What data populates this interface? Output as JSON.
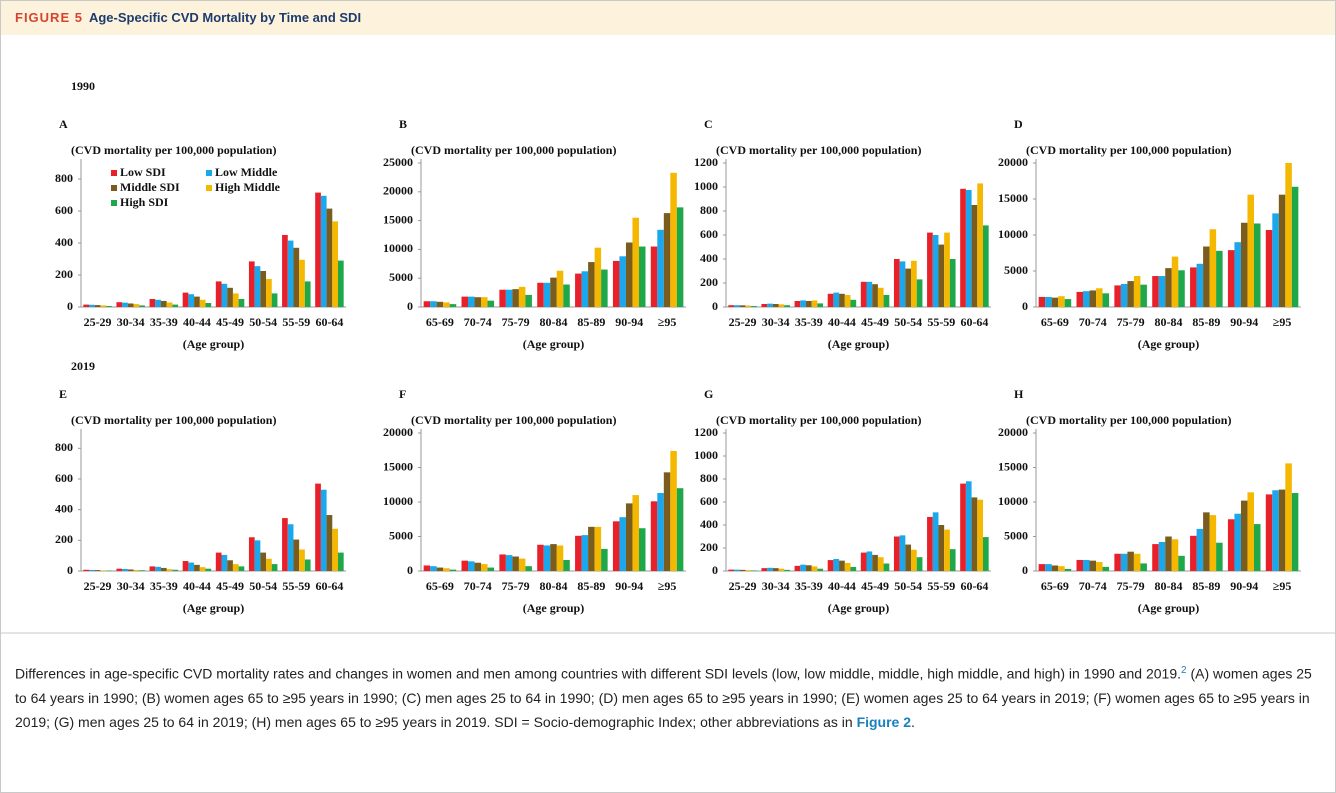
{
  "header": {
    "label": "FIGURE 5",
    "title": "Age-Specific CVD Mortality by Time and SDI"
  },
  "years": [
    "1990",
    "2019"
  ],
  "caption": {
    "text1": "Differences in age-specific CVD mortality rates and changes in women and men among countries with different SDI levels (low, low middle, middle, high middle, and high) in 1990 and 2019.",
    "ref": "2",
    "text2": " (A) women ages 25 to 64 years in 1990; (B) women ages 65 to ≥95 years in 1990; (C) men ages 25 to 64 in 1990; (D) men ages 65 to ≥95 years in 1990; (E) women ages 25 to 64 years in 2019; (F) women ages 65 to ≥95 years in 2019; (G) men ages 25 to 64 in 2019; (H) men ages 65 to ≥95 years in 2019. SDI = Socio-demographic Index; other abbreviations as in ",
    "link": "Figure 2",
    "end": "."
  },
  "chart_data": [
    {
      "type": "bar",
      "panel": "A",
      "y_label": "(CVD mortality per 100,000 population)",
      "x_label": "(Age group)",
      "legend": "upper left",
      "categories": [
        "25-29",
        "30-34",
        "35-39",
        "40-44",
        "45-49",
        "50-54",
        "55-59",
        "60-64"
      ],
      "ylim": [
        0,
        900
      ],
      "yticks": [
        0,
        200,
        400,
        600,
        800
      ],
      "series": [
        {
          "name": "Low SDI",
          "color": "#e8202a",
          "values": [
            15,
            30,
            50,
            90,
            160,
            285,
            450,
            715
          ]
        },
        {
          "name": "Low Middle",
          "color": "#1aa7ec",
          "values": [
            14,
            27,
            45,
            80,
            145,
            255,
            415,
            695
          ]
        },
        {
          "name": "Middle SDI",
          "color": "#7a5c1e",
          "values": [
            12,
            22,
            38,
            65,
            120,
            225,
            370,
            615
          ]
        },
        {
          "name": "High Middle",
          "color": "#f5b800",
          "values": [
            10,
            18,
            28,
            45,
            85,
            175,
            295,
            535
          ]
        },
        {
          "name": "High SDI",
          "color": "#1fa84a",
          "values": [
            6,
            10,
            15,
            25,
            50,
            85,
            160,
            290
          ]
        }
      ]
    },
    {
      "type": "bar",
      "panel": "B",
      "y_label": "(CVD mortality per 100,000 population)",
      "x_label": "(Age group)",
      "categories": [
        "65-69",
        "70-74",
        "75-79",
        "80-84",
        "85-89",
        "90-94",
        "≥95"
      ],
      "ylim": [
        0,
        25000
      ],
      "yticks": [
        0,
        5000,
        10000,
        15000,
        20000,
        25000
      ],
      "series": [
        {
          "color": "#e8202a",
          "values": [
            1000,
            1800,
            3000,
            4200,
            5800,
            8000,
            10500
          ]
        },
        {
          "color": "#1aa7ec",
          "values": [
            1000,
            1800,
            3000,
            4200,
            6200,
            8800,
            13400
          ]
        },
        {
          "color": "#7a5c1e",
          "values": [
            900,
            1700,
            3100,
            5100,
            7800,
            11200,
            16300
          ]
        },
        {
          "color": "#f5b800",
          "values": [
            800,
            1700,
            3500,
            6300,
            10300,
            15500,
            23300
          ]
        },
        {
          "color": "#1fa84a",
          "values": [
            500,
            1100,
            2100,
            3900,
            6500,
            10500,
            17300
          ]
        }
      ]
    },
    {
      "type": "bar",
      "panel": "C",
      "y_label": "(CVD mortality per 100,000 population)",
      "x_label": "(Age group)",
      "categories": [
        "25-29",
        "30-34",
        "35-39",
        "40-44",
        "45-49",
        "50-54",
        "55-59",
        "60-64"
      ],
      "ylim": [
        0,
        1200
      ],
      "yticks": [
        0,
        200,
        400,
        600,
        800,
        1000,
        1200
      ],
      "series": [
        {
          "color": "#e8202a",
          "values": [
            15,
            25,
            50,
            110,
            210,
            400,
            620,
            985
          ]
        },
        {
          "color": "#1aa7ec",
          "values": [
            15,
            28,
            55,
            120,
            210,
            380,
            600,
            975
          ]
        },
        {
          "color": "#7a5c1e",
          "values": [
            14,
            25,
            50,
            110,
            190,
            320,
            520,
            850
          ]
        },
        {
          "color": "#f5b800",
          "values": [
            12,
            22,
            55,
            100,
            160,
            385,
            620,
            1030
          ]
        },
        {
          "color": "#1fa84a",
          "values": [
            8,
            15,
            30,
            60,
            100,
            230,
            400,
            680
          ]
        }
      ]
    },
    {
      "type": "bar",
      "panel": "D",
      "y_label": "(CVD mortality per 100,000 population)",
      "x_label": "(Age group)",
      "categories": [
        "65-69",
        "70-74",
        "75-79",
        "80-84",
        "85-89",
        "90-94",
        "≥95"
      ],
      "ylim": [
        0,
        20000
      ],
      "yticks": [
        0,
        5000,
        10000,
        15000,
        20000
      ],
      "series": [
        {
          "color": "#e8202a",
          "values": [
            1400,
            2100,
            3000,
            4300,
            5500,
            7900,
            10700
          ]
        },
        {
          "color": "#1aa7ec",
          "values": [
            1400,
            2200,
            3200,
            4300,
            6000,
            9000,
            13000
          ]
        },
        {
          "color": "#7a5c1e",
          "values": [
            1300,
            2300,
            3600,
            5400,
            8400,
            11700,
            15600
          ]
        },
        {
          "color": "#f5b800",
          "values": [
            1500,
            2600,
            4300,
            7000,
            10800,
            15600,
            20000
          ]
        },
        {
          "color": "#1fa84a",
          "values": [
            1100,
            1900,
            3100,
            5100,
            7800,
            11600,
            16700
          ]
        }
      ]
    },
    {
      "type": "bar",
      "panel": "E",
      "y_label": "(CVD mortality per 100,000 population)",
      "x_label": "(Age group)",
      "categories": [
        "25-29",
        "30-34",
        "35-39",
        "40-44",
        "45-49",
        "50-54",
        "55-59",
        "60-64"
      ],
      "ylim": [
        0,
        900
      ],
      "yticks": [
        0,
        200,
        400,
        600,
        800
      ],
      "series": [
        {
          "color": "#e8202a",
          "values": [
            8,
            15,
            30,
            65,
            120,
            220,
            345,
            570
          ]
        },
        {
          "color": "#1aa7ec",
          "values": [
            7,
            13,
            27,
            55,
            105,
            200,
            305,
            530
          ]
        },
        {
          "color": "#7a5c1e",
          "values": [
            6,
            10,
            20,
            40,
            70,
            120,
            205,
            365
          ]
        },
        {
          "color": "#f5b800",
          "values": [
            4,
            7,
            12,
            25,
            45,
            80,
            140,
            275
          ]
        },
        {
          "color": "#1fa84a",
          "values": [
            3,
            5,
            8,
            15,
            30,
            45,
            75,
            120
          ]
        }
      ]
    },
    {
      "type": "bar",
      "panel": "F",
      "y_label": "(CVD mortality per 100,000 population)",
      "x_label": "(Age group)",
      "categories": [
        "65-69",
        "70-74",
        "75-79",
        "80-84",
        "85-89",
        "90-94",
        "≥95"
      ],
      "ylim": [
        0,
        20000
      ],
      "yticks": [
        0,
        5000,
        10000,
        15000,
        20000
      ],
      "series": [
        {
          "color": "#e8202a",
          "values": [
            800,
            1500,
            2400,
            3800,
            5100,
            7200,
            10100
          ]
        },
        {
          "color": "#1aa7ec",
          "values": [
            700,
            1400,
            2300,
            3700,
            5200,
            7800,
            11300
          ]
        },
        {
          "color": "#7a5c1e",
          "values": [
            500,
            1200,
            2100,
            3900,
            6400,
            9800,
            14300
          ]
        },
        {
          "color": "#f5b800",
          "values": [
            400,
            1000,
            1800,
            3700,
            6400,
            11000,
            17400
          ]
        },
        {
          "color": "#1fa84a",
          "values": [
            200,
            500,
            700,
            1600,
            3200,
            6200,
            12000
          ]
        }
      ]
    },
    {
      "type": "bar",
      "panel": "G",
      "y_label": "(CVD mortality per 100,000 population)",
      "x_label": "(Age group)",
      "categories": [
        "25-29",
        "30-34",
        "35-39",
        "40-44",
        "45-49",
        "50-54",
        "55-59",
        "60-64"
      ],
      "ylim": [
        0,
        1200
      ],
      "yticks": [
        0,
        200,
        400,
        600,
        800,
        1000,
        1200
      ],
      "series": [
        {
          "color": "#e8202a",
          "values": [
            12,
            25,
            45,
            95,
            160,
            300,
            470,
            760
          ]
        },
        {
          "color": "#1aa7ec",
          "values": [
            12,
            28,
            55,
            105,
            170,
            310,
            510,
            780
          ]
        },
        {
          "color": "#7a5c1e",
          "values": [
            10,
            25,
            50,
            90,
            140,
            230,
            400,
            640
          ]
        },
        {
          "color": "#f5b800",
          "values": [
            8,
            20,
            40,
            70,
            120,
            185,
            360,
            620
          ]
        },
        {
          "color": "#1fa84a",
          "values": [
            5,
            10,
            20,
            35,
            65,
            120,
            190,
            295
          ]
        }
      ]
    },
    {
      "type": "bar",
      "panel": "H",
      "y_label": "(CVD mortality per 100,000 population)",
      "x_label": "(Age group)",
      "categories": [
        "65-69",
        "70-74",
        "75-79",
        "80-84",
        "85-89",
        "90-94",
        "≥95"
      ],
      "ylim": [
        0,
        20000
      ],
      "yticks": [
        0,
        5000,
        10000,
        15000,
        20000
      ],
      "series": [
        {
          "color": "#e8202a",
          "values": [
            1000,
            1600,
            2500,
            3900,
            5100,
            7500,
            11100
          ]
        },
        {
          "color": "#1aa7ec",
          "values": [
            1000,
            1600,
            2500,
            4200,
            6100,
            8300,
            11700
          ]
        },
        {
          "color": "#7a5c1e",
          "values": [
            800,
            1500,
            2800,
            5000,
            8500,
            10200,
            11800
          ]
        },
        {
          "color": "#f5b800",
          "values": [
            700,
            1300,
            2500,
            4600,
            8100,
            11400,
            15600
          ]
        },
        {
          "color": "#1fa84a",
          "values": [
            300,
            600,
            1100,
            2200,
            4100,
            6800,
            11300
          ]
        }
      ]
    }
  ]
}
